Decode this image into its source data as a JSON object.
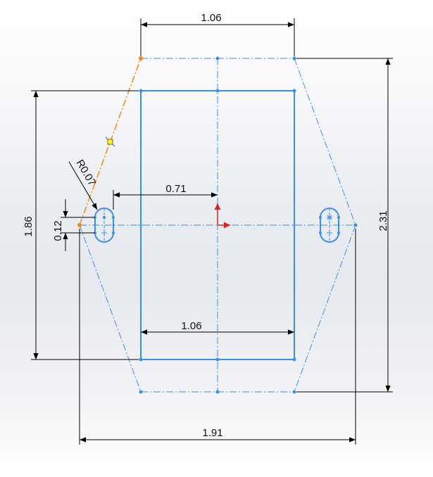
{
  "sketch": {
    "dimensions": {
      "top_width": "1.06",
      "bottom_width": "1.06",
      "slot_offset": "0.71",
      "total_width": "1.91",
      "rect_height": "1.86",
      "total_height": "2.31",
      "slot_length": "0.12",
      "slot_radius": "R0.07"
    },
    "colors": {
      "geometry": "#3d8ee8",
      "selected": "#f08a1a",
      "dimension": "#000000",
      "axis_y": "#e02020",
      "axis_x": "#e02020",
      "handle": "#ffff00"
    },
    "icons": {
      "origin": "origin-icon",
      "relation": "coincident-relation-icon"
    }
  }
}
